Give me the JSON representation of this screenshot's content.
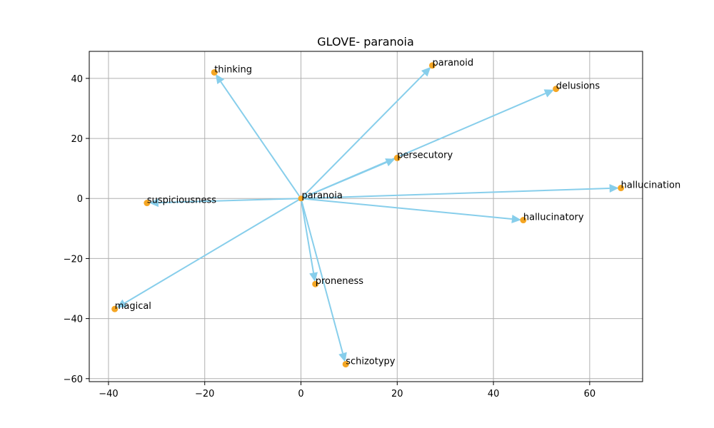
{
  "chart_data": {
    "type": "scatter",
    "title": "GLOVE- paranoia",
    "xlabel": "",
    "ylabel": "",
    "xlim": [
      -44,
      71
    ],
    "ylim": [
      -61,
      49
    ],
    "xticks": [
      -40,
      -20,
      0,
      20,
      40,
      60
    ],
    "yticks": [
      -60,
      -40,
      -20,
      0,
      20,
      40
    ],
    "xtick_labels": [
      "−40",
      "−20",
      "0",
      "20",
      "40",
      "60"
    ],
    "ytick_labels": [
      "−60",
      "−40",
      "−20",
      "0",
      "20",
      "40"
    ],
    "grid": true,
    "origin": {
      "label": "paranoia",
      "x": 0,
      "y": 0
    },
    "points": [
      {
        "label": "thinking",
        "x": -18,
        "y": 42
      },
      {
        "label": "paranoid",
        "x": 27.3,
        "y": 44.3
      },
      {
        "label": "delusions",
        "x": 53,
        "y": 36.5
      },
      {
        "label": "persecutory",
        "x": 20,
        "y": 13.5
      },
      {
        "label": "hallucination",
        "x": 66.5,
        "y": 3.5
      },
      {
        "label": "suspiciousness",
        "x": -32,
        "y": -1.5
      },
      {
        "label": "hallucinatory",
        "x": 46.2,
        "y": -7.2
      },
      {
        "label": "proneness",
        "x": 3,
        "y": -28.5
      },
      {
        "label": "magical",
        "x": -38.7,
        "y": -36.8
      },
      {
        "label": "schizotypy",
        "x": 9.3,
        "y": -55.2
      }
    ],
    "colors": {
      "arrow": "#87ceeb",
      "point": "#f5a623",
      "grid": "#b0b0b0"
    }
  }
}
